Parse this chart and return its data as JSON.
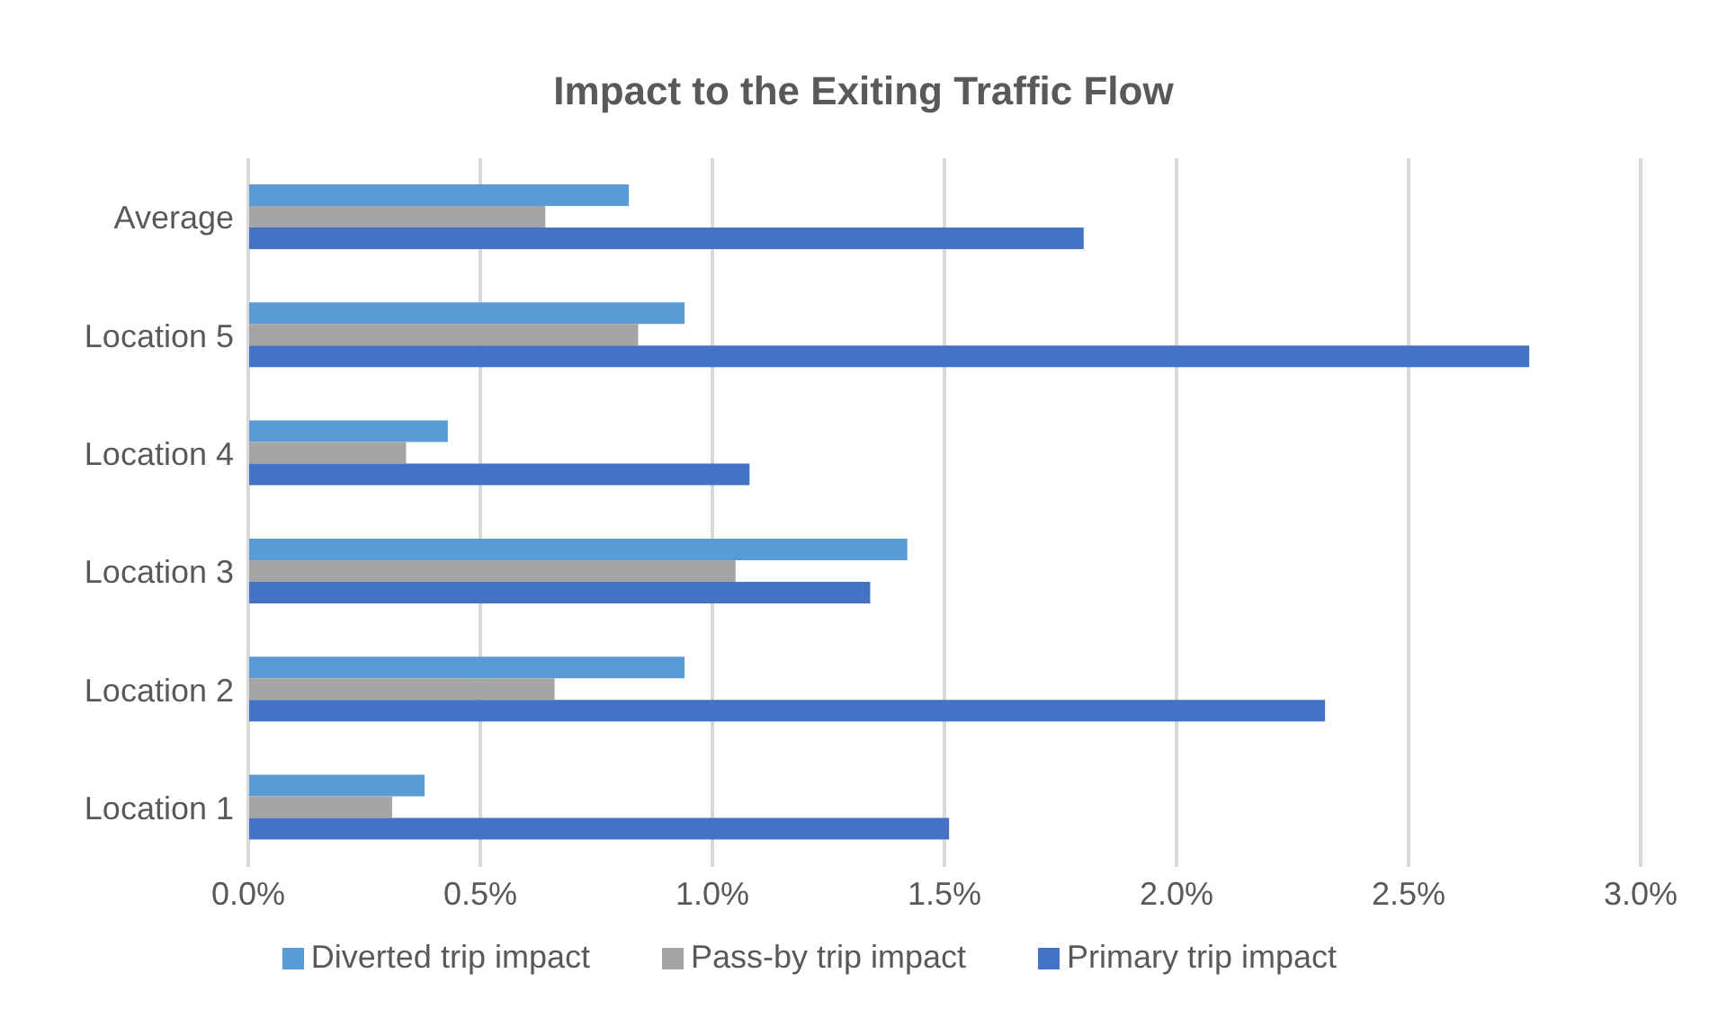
{
  "chart_data": {
    "type": "bar",
    "orientation": "horizontal",
    "title": "Impact to the Exiting Traffic Flow",
    "categories": [
      "Average",
      "Location 5",
      "Location 4",
      "Location 3",
      "Location 2",
      "Location 1"
    ],
    "series": [
      {
        "name": "Diverted trip impact",
        "color": "#5b9bd5",
        "values": [
          0.82,
          0.94,
          0.43,
          1.42,
          0.94,
          0.38
        ]
      },
      {
        "name": "Pass-by trip impact",
        "color": "#a5a5a5",
        "values": [
          0.64,
          0.84,
          0.34,
          1.05,
          0.66,
          0.31
        ]
      },
      {
        "name": "Primary trip impact",
        "color": "#4472c4",
        "values": [
          1.8,
          2.76,
          1.08,
          1.34,
          2.32,
          1.51
        ]
      }
    ],
    "xlim": [
      0,
      3
    ],
    "xticks": [
      {
        "value": 0,
        "label": "0.0%"
      },
      {
        "value": 0.5,
        "label": "0.5%"
      },
      {
        "value": 1,
        "label": "1.0%"
      },
      {
        "value": 1.5,
        "label": "1.5%"
      },
      {
        "value": 2,
        "label": "2.0%"
      },
      {
        "value": 2.5,
        "label": "2.5%"
      },
      {
        "value": 3,
        "label": "3.0%"
      }
    ],
    "grid": "x",
    "legend": "bottom"
  }
}
